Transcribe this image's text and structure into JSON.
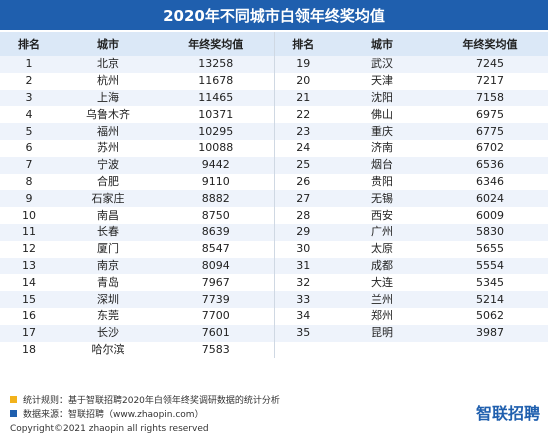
{
  "title": "2020年不同城市白领年终奖均值",
  "headers": {
    "rank": "排名",
    "city": "城市",
    "value": "年终奖均值"
  },
  "left_rows": [
    {
      "rank": "1",
      "city": "北京",
      "value": "13258"
    },
    {
      "rank": "2",
      "city": "杭州",
      "value": "11678"
    },
    {
      "rank": "3",
      "city": "上海",
      "value": "11465"
    },
    {
      "rank": "4",
      "city": "乌鲁木齐",
      "value": "10371"
    },
    {
      "rank": "5",
      "city": "福州",
      "value": "10295"
    },
    {
      "rank": "6",
      "city": "苏州",
      "value": "10088"
    },
    {
      "rank": "7",
      "city": "宁波",
      "value": "9442"
    },
    {
      "rank": "8",
      "city": "合肥",
      "value": "9110"
    },
    {
      "rank": "9",
      "city": "石家庄",
      "value": "8882"
    },
    {
      "rank": "10",
      "city": "南昌",
      "value": "8750"
    },
    {
      "rank": "11",
      "city": "长春",
      "value": "8639"
    },
    {
      "rank": "12",
      "city": "厦门",
      "value": "8547"
    },
    {
      "rank": "13",
      "city": "南京",
      "value": "8094"
    },
    {
      "rank": "14",
      "city": "青岛",
      "value": "7967"
    },
    {
      "rank": "15",
      "city": "深圳",
      "value": "7739"
    },
    {
      "rank": "16",
      "city": "东莞",
      "value": "7700"
    },
    {
      "rank": "17",
      "city": "长沙",
      "value": "7601"
    },
    {
      "rank": "18",
      "city": "哈尔滨",
      "value": "7583"
    }
  ],
  "right_rows": [
    {
      "rank": "19",
      "city": "武汉",
      "value": "7245"
    },
    {
      "rank": "20",
      "city": "天津",
      "value": "7217"
    },
    {
      "rank": "21",
      "city": "沈阳",
      "value": "7158"
    },
    {
      "rank": "22",
      "city": "佛山",
      "value": "6975"
    },
    {
      "rank": "23",
      "city": "重庆",
      "value": "6775"
    },
    {
      "rank": "24",
      "city": "济南",
      "value": "6702"
    },
    {
      "rank": "25",
      "city": "烟台",
      "value": "6536"
    },
    {
      "rank": "26",
      "city": "贵阳",
      "value": "6346"
    },
    {
      "rank": "27",
      "city": "无锡",
      "value": "6024"
    },
    {
      "rank": "28",
      "city": "西安",
      "value": "6009"
    },
    {
      "rank": "29",
      "city": "广州",
      "value": "5830"
    },
    {
      "rank": "30",
      "city": "太原",
      "value": "5655"
    },
    {
      "rank": "31",
      "city": "成都",
      "value": "5554"
    },
    {
      "rank": "32",
      "city": "大连",
      "value": "5345"
    },
    {
      "rank": "33",
      "city": "兰州",
      "value": "5214"
    },
    {
      "rank": "34",
      "city": "郑州",
      "value": "5062"
    },
    {
      "rank": "35",
      "city": "昆明",
      "value": "3987"
    },
    {
      "rank": "",
      "city": "",
      "value": ""
    }
  ],
  "notes": {
    "stat_rule": "统计规则：基于智联招聘2020年白领年终奖调研数据的统计分析",
    "source": "数据来源：智联招聘（www.zhaopin.com）"
  },
  "logo_text": "智联招聘",
  "copyright": "Copyright©2021 zhaopin all rights reserved",
  "colors": {
    "title_bg": "#1f5fae",
    "header_bg": "#dbe8f7",
    "row_alt": "#eef3fb",
    "note_yellow": "#f2b21b",
    "note_blue": "#1f5fae"
  }
}
